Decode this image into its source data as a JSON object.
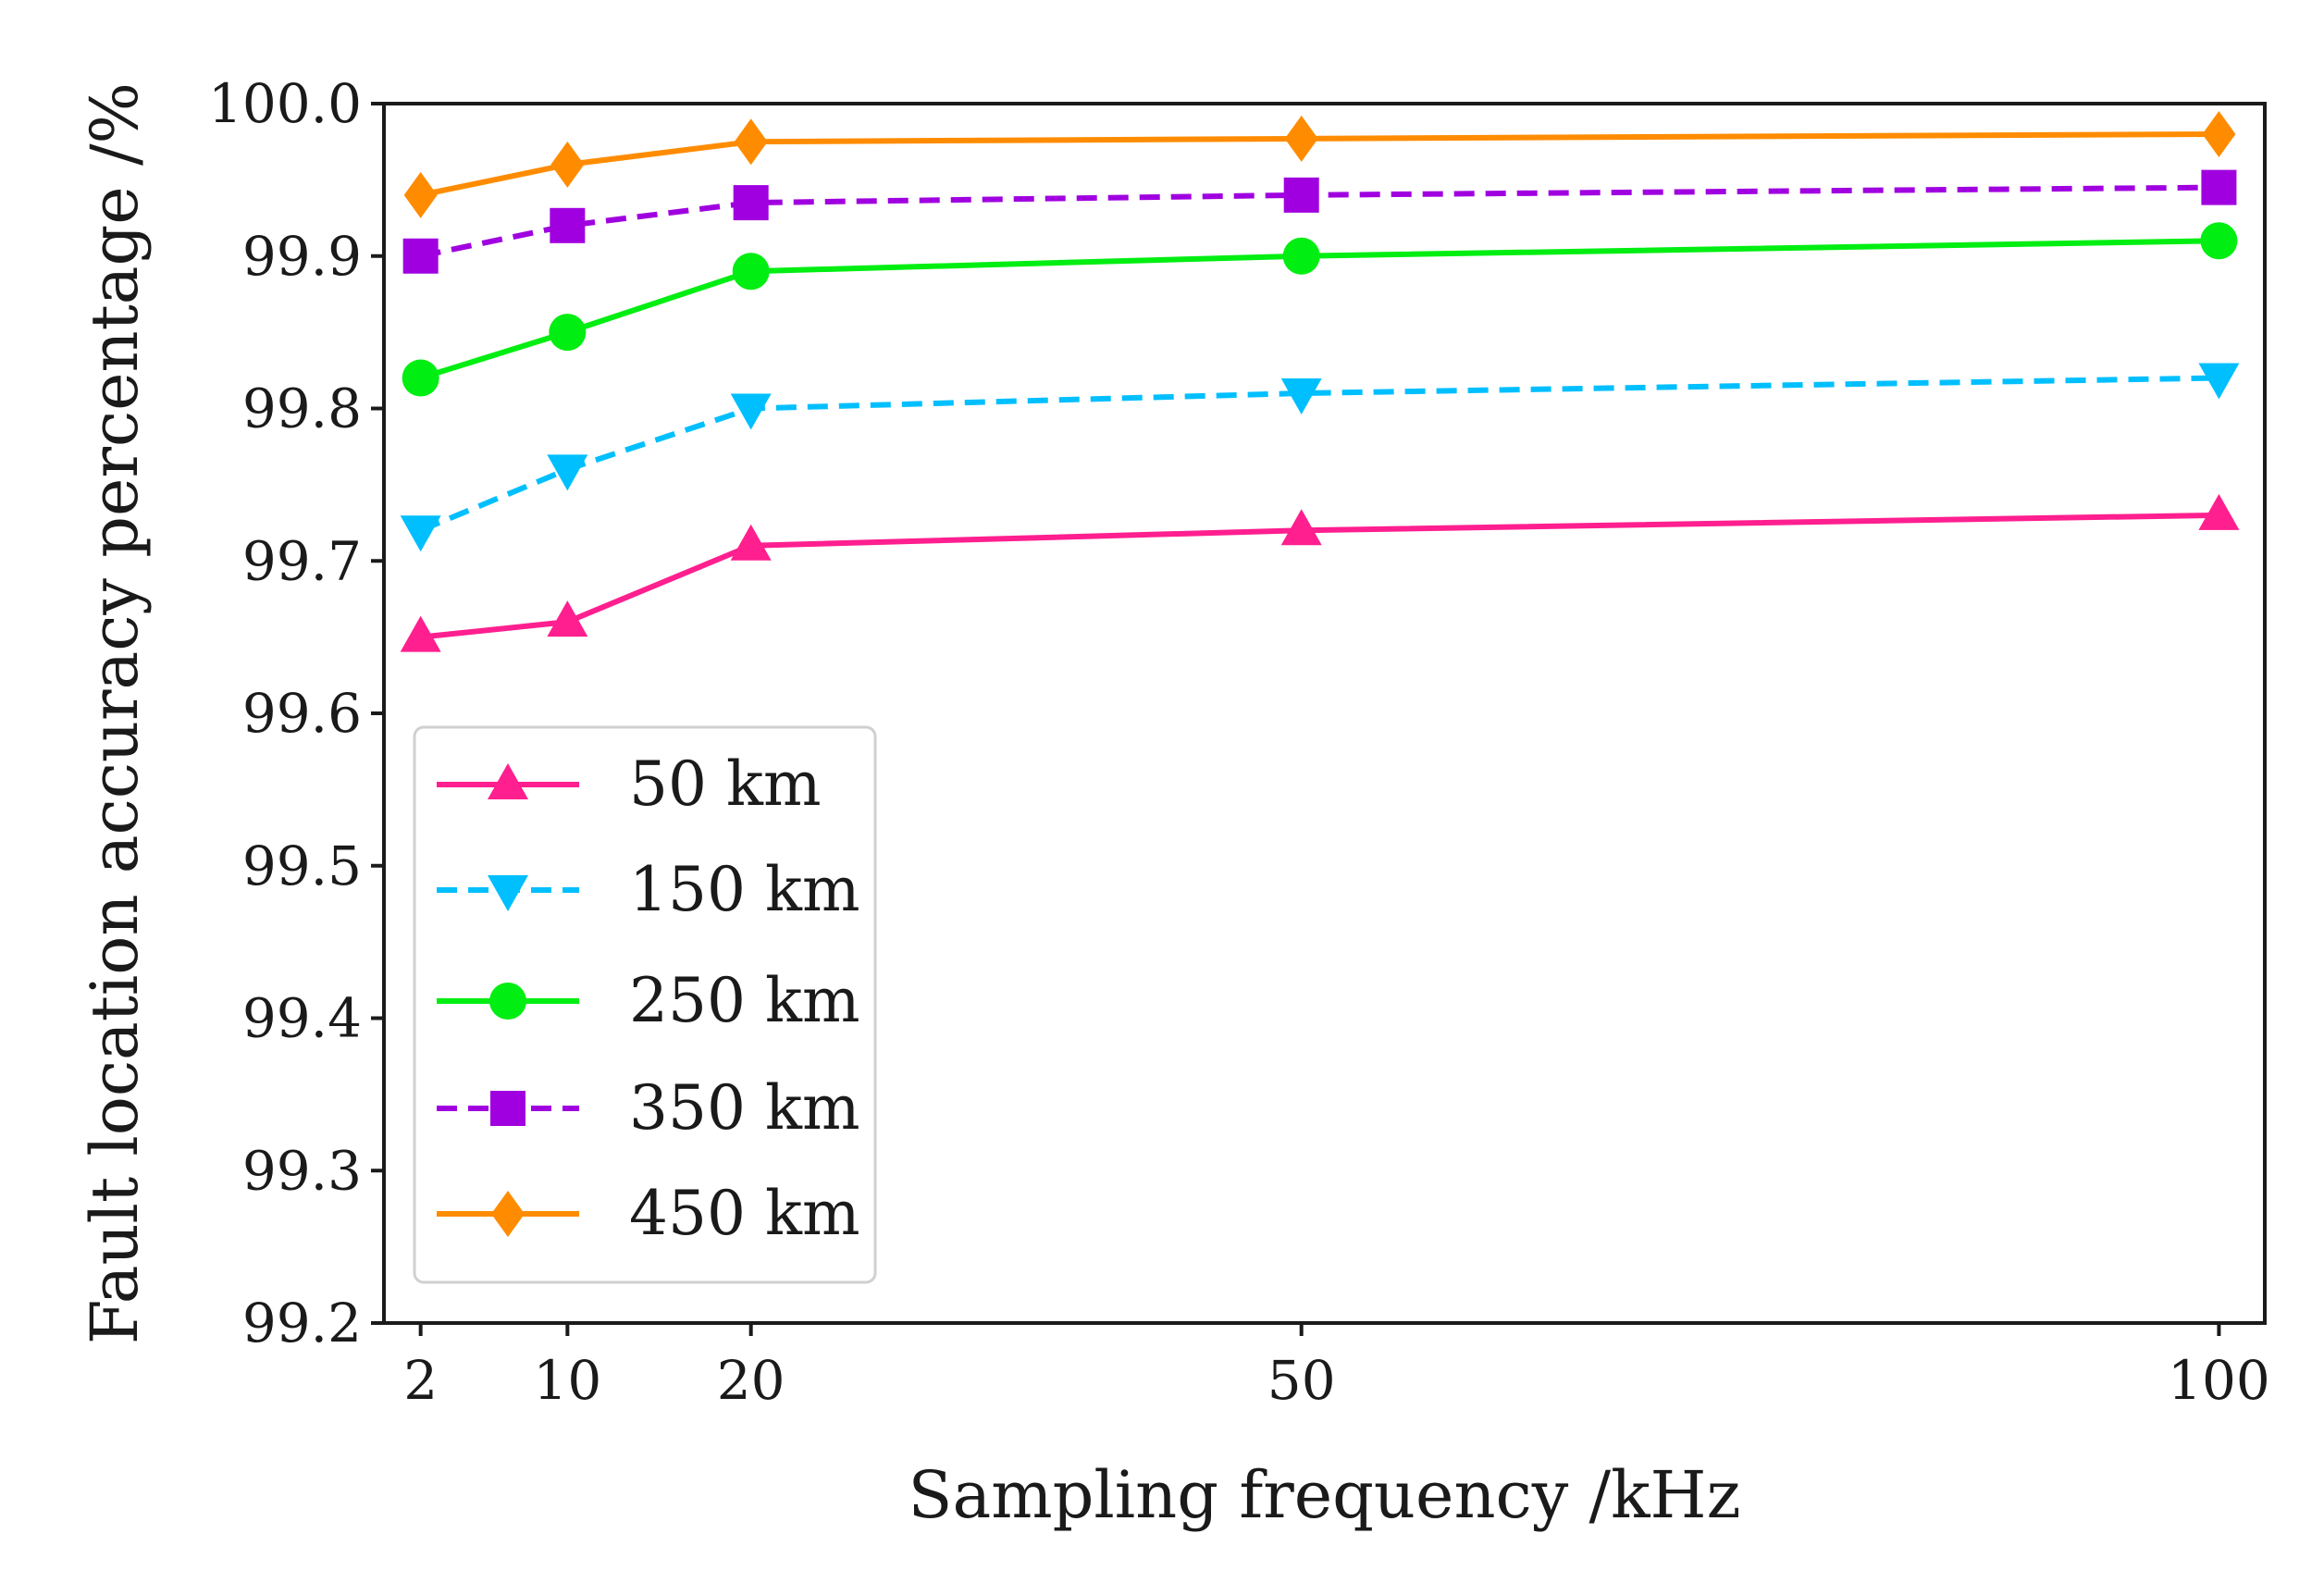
{
  "chart_data": {
    "type": "line",
    "title": "",
    "xlabel": "Sampling frequency /kHz",
    "ylabel": "Fault location accuracy percentage /%",
    "x": [
      2,
      10,
      20,
      50,
      100
    ],
    "xticks": [
      "2",
      "10",
      "20",
      "50",
      "100"
    ],
    "xlim": [
      0,
      102.5
    ],
    "ylim": [
      99.2,
      100.0
    ],
    "yticks": [
      "99.2",
      "99.3",
      "99.4",
      "99.5",
      "99.6",
      "99.7",
      "99.8",
      "99.9",
      "100.0"
    ],
    "grid": false,
    "legend_position": "lower-left",
    "series": [
      {
        "name": "50 km",
        "values": [
          99.65,
          99.66,
          99.71,
          99.72,
          99.73
        ],
        "color": "#ff1f8f",
        "linestyle": "solid",
        "marker": "triangle-up"
      },
      {
        "name": "150 km",
        "values": [
          99.72,
          99.76,
          99.8,
          99.81,
          99.82
        ],
        "color": "#00bfff",
        "linestyle": "dashed",
        "marker": "triangle-down"
      },
      {
        "name": "250 km",
        "values": [
          99.82,
          99.85,
          99.89,
          99.9,
          99.91
        ],
        "color": "#00ee11",
        "linestyle": "solid",
        "marker": "circle"
      },
      {
        "name": "350 km",
        "values": [
          99.9,
          99.92,
          99.935,
          99.94,
          99.945
        ],
        "color": "#a000e0",
        "linestyle": "dashed",
        "marker": "square"
      },
      {
        "name": "450 km",
        "values": [
          99.94,
          99.96,
          99.975,
          99.977,
          99.98
        ],
        "color": "#ff8c00",
        "linestyle": "solid",
        "marker": "diamond"
      }
    ]
  }
}
